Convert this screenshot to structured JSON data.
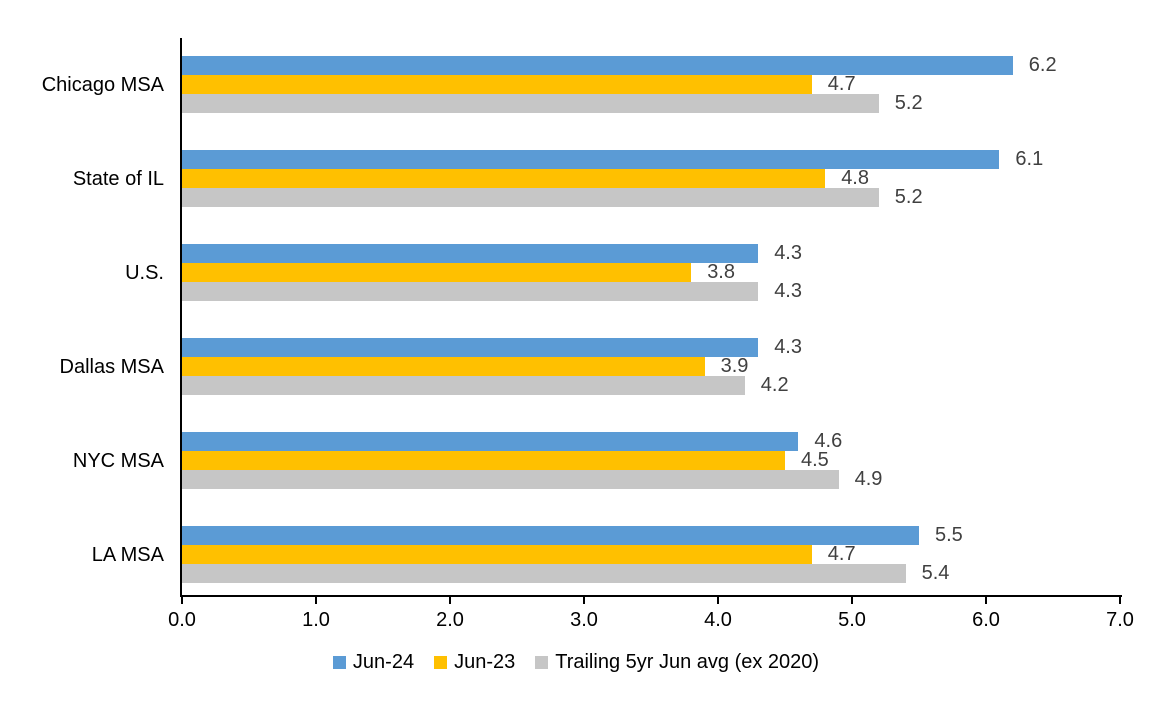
{
  "chart_data": {
    "type": "bar",
    "orientation": "horizontal",
    "title": "",
    "categories": [
      "Chicago MSA",
      "State of IL",
      "U.S.",
      "Dallas MSA",
      "NYC MSA",
      "LA MSA"
    ],
    "series": [
      {
        "name": "Jun-24",
        "color": "#5B9BD5",
        "values": [
          6.2,
          6.1,
          4.3,
          4.3,
          4.6,
          5.5
        ]
      },
      {
        "name": "Jun-23",
        "color": "#FFC000",
        "values": [
          4.7,
          4.8,
          3.8,
          3.9,
          4.5,
          4.7
        ]
      },
      {
        "name": "Trailing 5yr Jun avg (ex 2020)",
        "color": "#C6C6C6",
        "values": [
          5.2,
          5.2,
          4.3,
          4.2,
          4.9,
          5.4
        ]
      }
    ],
    "x_ticks": [
      "0.0",
      "1.0",
      "2.0",
      "3.0",
      "4.0",
      "5.0",
      "6.0",
      "7.0"
    ],
    "xlim": [
      0,
      7
    ],
    "value_label_decimals": 1,
    "value_labels_shown": true,
    "grid": false,
    "legend_position": "bottom",
    "colors": {
      "axis": "#000000",
      "value_label": "#404040",
      "tick_label": "#000000",
      "category_label": "#000000",
      "background": "#FFFFFF"
    }
  }
}
